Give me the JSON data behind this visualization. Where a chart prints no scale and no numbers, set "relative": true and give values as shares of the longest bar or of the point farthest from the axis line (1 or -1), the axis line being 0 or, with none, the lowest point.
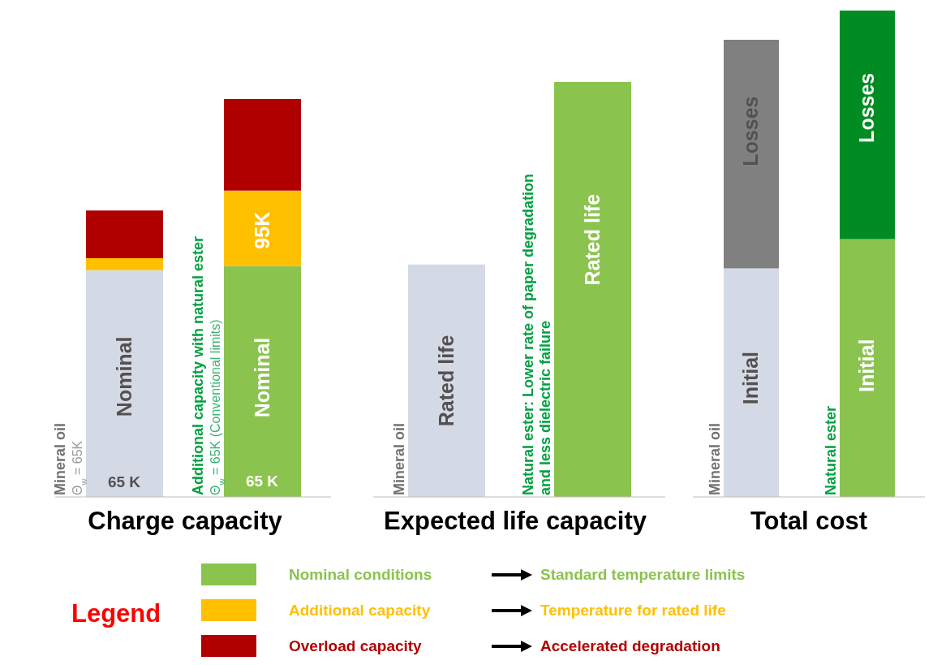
{
  "chart_data": [
    {
      "type": "bar",
      "title": "Charge capacity",
      "relative": true,
      "stacked": true,
      "legend": "bottom",
      "legend_title": "Legend",
      "categories": [
        "Mineral oil",
        "Additional capacity with natural ester"
      ],
      "series": [
        {
          "name": "Nominal conditions",
          "color": "#8bc34f",
          "colors": [
            "#d3dae5",
            "#8bc34f"
          ],
          "values": [
            0.57,
            0.58
          ]
        },
        {
          "name": "Additional capacity",
          "color": "#ffc000",
          "colors": [
            "#ffc000",
            "#ffc000"
          ],
          "values": [
            0.03,
            0.19
          ]
        },
        {
          "name": "Overload capacity",
          "color": "#b00000",
          "colors": [
            "#b00000",
            "#b00000"
          ],
          "values": [
            0.12,
            0.23
          ]
        }
      ],
      "annotations": [
        "Θ$_{w}$ = 65K",
        "Θ$_{w}$ = 65K (Conventional limits)",
        "Nominal",
        "65 K",
        "Nominal",
        "65 K",
        "95K",
        "Standard temperature limits",
        "Temperature for rated life",
        "Accelerated degradation"
      ]
    },
    {
      "type": "bar",
      "title": "Expected life capacity",
      "relative": true,
      "categories": [
        "Mineral oil",
        "Natural ester: Lower rate of paper degradation and less dielectric failure"
      ],
      "series": [
        {
          "color": "#8bc34f",
          "colors": [
            "#d3dae5",
            "#8bc34f"
          ],
          "values": [
            0.56,
            1
          ]
        }
      ],
      "annotations": [
        "Rated life",
        "Rated life"
      ]
    },
    {
      "type": "bar",
      "title": "Total cost",
      "relative": true,
      "stacked": true,
      "categories": [
        "Mineral oil",
        "Natural ester"
      ],
      "series": [
        {
          "color": "#8bc34f",
          "colors": [
            "#d3dae5",
            "#8bc34f"
          ],
          "values": [
            0.47,
            0.53
          ]
        },
        {
          "color": "#008c23",
          "colors": [
            "#808080",
            "#008c23"
          ],
          "values": [
            0.47,
            0.47
          ]
        }
      ],
      "annotations": [
        "Initial",
        "Losses",
        "Initial",
        "Losses"
      ]
    }
  ]
}
